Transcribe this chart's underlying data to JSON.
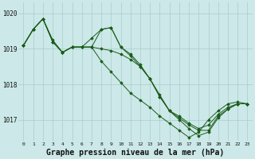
{
  "background_color": "#cce8e8",
  "grid_color": "#aacccc",
  "line_color": "#1a5c1a",
  "marker_color": "#1a5c1a",
  "xlabel": "Graphe pression niveau de la mer (hPa)",
  "xlabel_fontsize": 7.0,
  "xlim": [
    -0.5,
    23.5
  ],
  "ylim": [
    1016.4,
    1020.3
  ],
  "yticks": [
    1017,
    1018,
    1019,
    1020
  ],
  "xticks": [
    0,
    1,
    2,
    3,
    4,
    5,
    6,
    7,
    8,
    9,
    10,
    11,
    12,
    13,
    14,
    15,
    16,
    17,
    18,
    19,
    20,
    21,
    22,
    23
  ],
  "series": [
    [
      1019.1,
      1019.55,
      1019.85,
      1019.25,
      1018.9,
      1019.05,
      1019.05,
      1019.3,
      1019.55,
      1019.6,
      1019.05,
      1018.8,
      1018.5,
      1018.15,
      1017.7,
      1017.25,
      1017.1,
      1016.9,
      1016.75,
      1016.85,
      1017.15,
      1017.35,
      1017.45,
      1017.45
    ],
    [
      1019.1,
      1019.55,
      1019.85,
      1019.2,
      1018.9,
      1019.05,
      1019.05,
      1019.05,
      1018.65,
      1018.35,
      1018.05,
      1017.75,
      1017.55,
      1017.35,
      1017.1,
      1016.9,
      1016.7,
      1016.5,
      1016.65,
      1017.0,
      1017.25,
      1017.45,
      1017.5,
      1017.45
    ],
    [
      1019.1,
      1019.55,
      1019.85,
      1019.2,
      1018.9,
      1019.05,
      1019.05,
      1019.05,
      1019.0,
      1018.95,
      1018.85,
      1018.7,
      1018.5,
      1018.15,
      1017.65,
      1017.25,
      1017.05,
      1016.85,
      1016.7,
      1016.7,
      1017.1,
      1017.3,
      1017.45,
      1017.45
    ],
    [
      1019.1,
      1019.55,
      1019.85,
      1019.2,
      1018.9,
      1019.05,
      1019.05,
      1019.05,
      1019.55,
      1019.6,
      1019.05,
      1018.85,
      1018.55,
      1018.15,
      1017.65,
      1017.25,
      1017.0,
      1016.75,
      1016.55,
      1016.65,
      1017.05,
      1017.3,
      1017.45,
      1017.45
    ]
  ]
}
